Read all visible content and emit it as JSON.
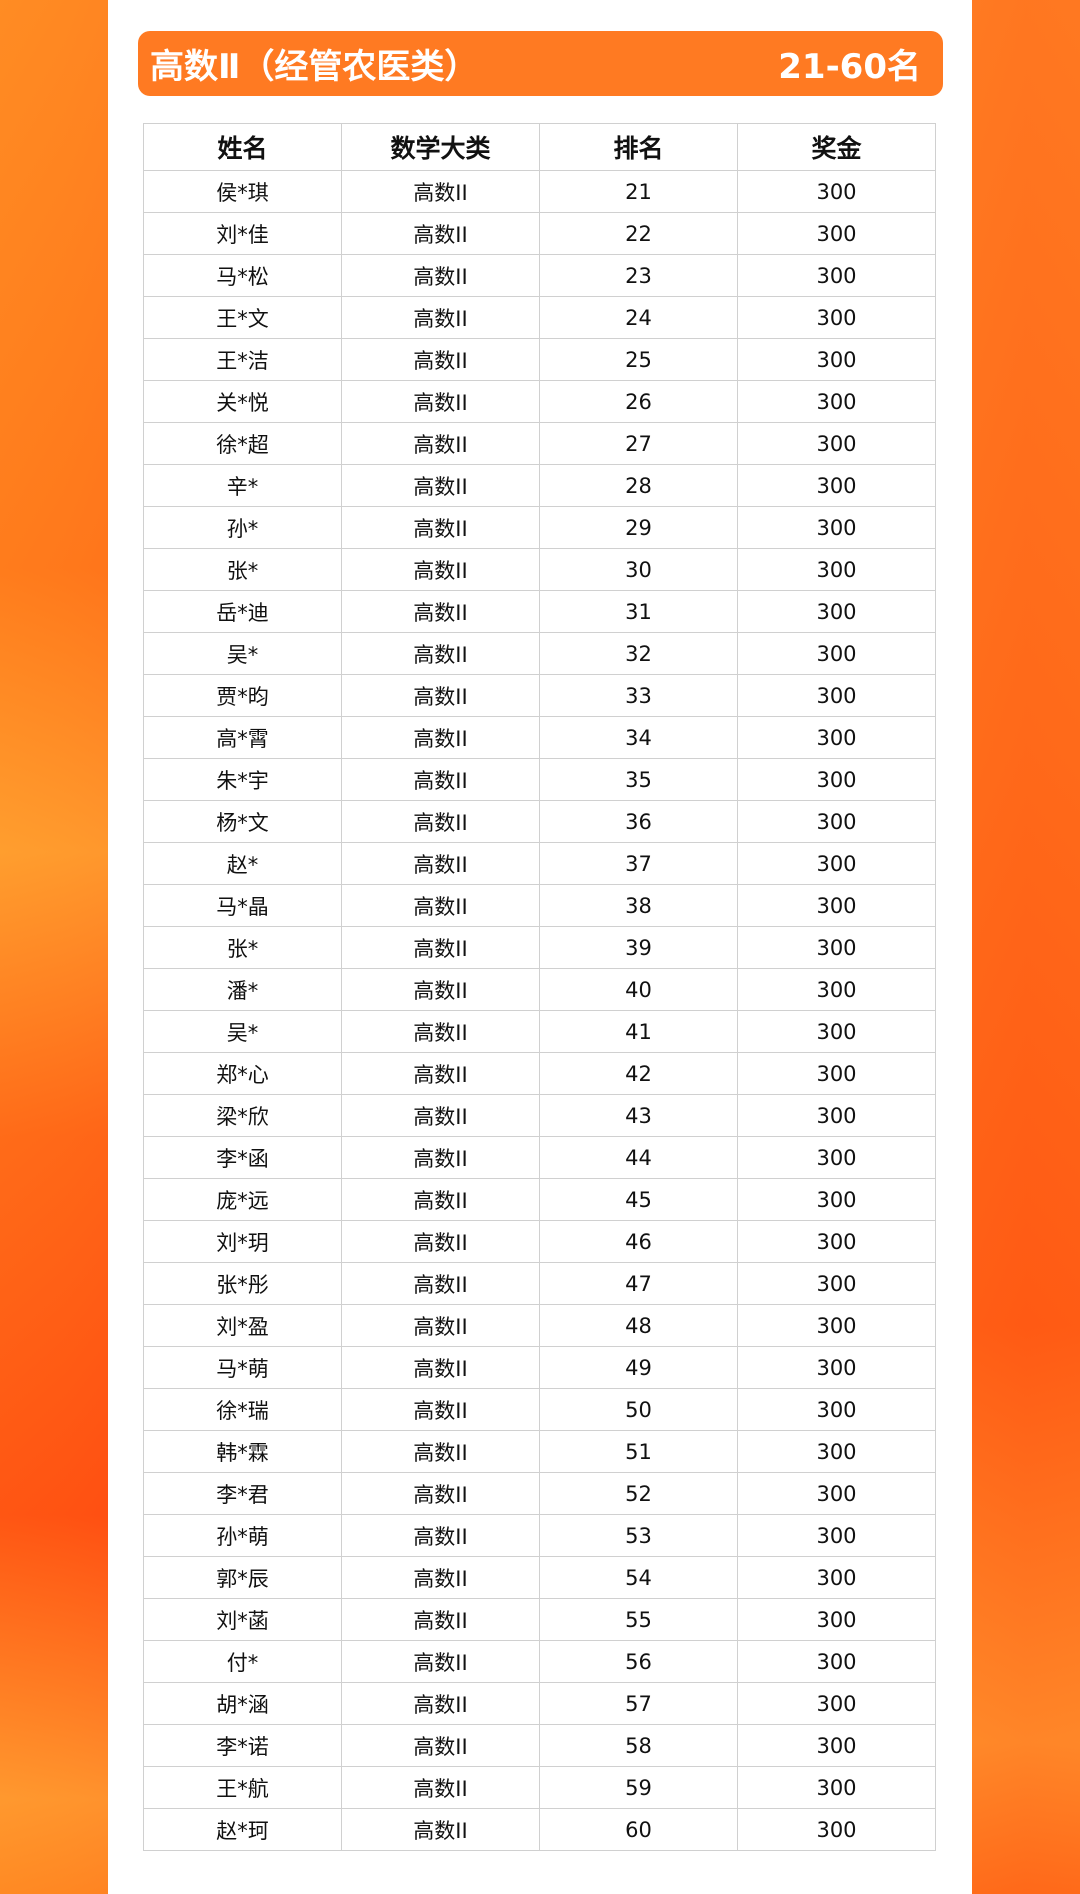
{
  "title": {
    "left": "高数Ⅱ（经管农医类）",
    "right": "21-60名"
  },
  "colors": {
    "accent": "#ff7a22",
    "background": "#ff6a14"
  },
  "table": {
    "headers": [
      "姓名",
      "数学大类",
      "排名",
      "奖金"
    ],
    "rows": [
      [
        "侯*琪",
        "高数II",
        "21",
        "300"
      ],
      [
        "刘*佳",
        "高数II",
        "22",
        "300"
      ],
      [
        "马*松",
        "高数II",
        "23",
        "300"
      ],
      [
        "王*文",
        "高数II",
        "24",
        "300"
      ],
      [
        "王*洁",
        "高数II",
        "25",
        "300"
      ],
      [
        "关*悦",
        "高数II",
        "26",
        "300"
      ],
      [
        "徐*超",
        "高数II",
        "27",
        "300"
      ],
      [
        "辛*",
        "高数II",
        "28",
        "300"
      ],
      [
        "孙*",
        "高数II",
        "29",
        "300"
      ],
      [
        "张*",
        "高数II",
        "30",
        "300"
      ],
      [
        "岳*迪",
        "高数II",
        "31",
        "300"
      ],
      [
        "吴*",
        "高数II",
        "32",
        "300"
      ],
      [
        "贾*昀",
        "高数II",
        "33",
        "300"
      ],
      [
        "高*霄",
        "高数II",
        "34",
        "300"
      ],
      [
        "朱*宇",
        "高数II",
        "35",
        "300"
      ],
      [
        "杨*文",
        "高数II",
        "36",
        "300"
      ],
      [
        "赵*",
        "高数II",
        "37",
        "300"
      ],
      [
        "马*晶",
        "高数II",
        "38",
        "300"
      ],
      [
        "张*",
        "高数II",
        "39",
        "300"
      ],
      [
        "潘*",
        "高数II",
        "40",
        "300"
      ],
      [
        "吴*",
        "高数II",
        "41",
        "300"
      ],
      [
        "郑*心",
        "高数II",
        "42",
        "300"
      ],
      [
        "梁*欣",
        "高数II",
        "43",
        "300"
      ],
      [
        "李*函",
        "高数II",
        "44",
        "300"
      ],
      [
        "庞*远",
        "高数II",
        "45",
        "300"
      ],
      [
        "刘*玥",
        "高数II",
        "46",
        "300"
      ],
      [
        "张*彤",
        "高数II",
        "47",
        "300"
      ],
      [
        "刘*盈",
        "高数II",
        "48",
        "300"
      ],
      [
        "马*萌",
        "高数II",
        "49",
        "300"
      ],
      [
        "徐*瑞",
        "高数II",
        "50",
        "300"
      ],
      [
        "韩*霖",
        "高数II",
        "51",
        "300"
      ],
      [
        "李*君",
        "高数II",
        "52",
        "300"
      ],
      [
        "孙*萌",
        "高数II",
        "53",
        "300"
      ],
      [
        "郭*辰",
        "高数II",
        "54",
        "300"
      ],
      [
        "刘*菡",
        "高数II",
        "55",
        "300"
      ],
      [
        "付*",
        "高数II",
        "56",
        "300"
      ],
      [
        "胡*涵",
        "高数II",
        "57",
        "300"
      ],
      [
        "李*诺",
        "高数II",
        "58",
        "300"
      ],
      [
        "王*航",
        "高数II",
        "59",
        "300"
      ],
      [
        "赵*珂",
        "高数II",
        "60",
        "300"
      ]
    ]
  }
}
